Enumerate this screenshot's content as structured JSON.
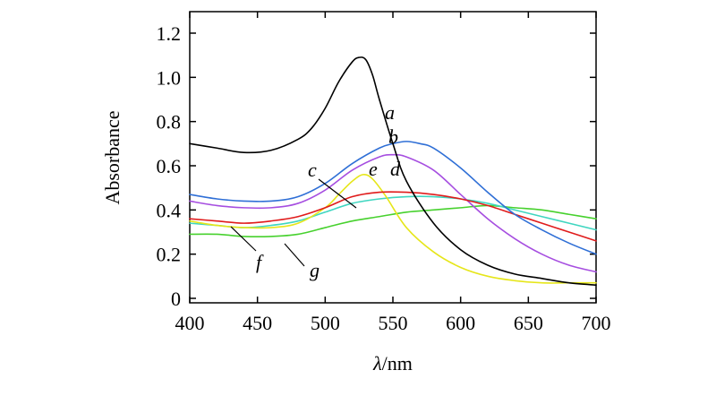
{
  "chart_data": {
    "type": "line",
    "title": "",
    "xlabel_italic": "λ",
    "xlabel_unit": "/nm",
    "ylabel": "Absorbance",
    "xlim": [
      400,
      700
    ],
    "ylim": [
      0,
      1.3
    ],
    "xticks": [
      400,
      450,
      500,
      550,
      600,
      650,
      700
    ],
    "xtick_labels": [
      "400",
      "450",
      "500",
      "550",
      "600",
      "650",
      "700"
    ],
    "yticks": [
      0,
      0.2,
      0.4,
      0.6,
      0.8,
      1.0,
      1.2
    ],
    "ytick_labels": [
      "0",
      "0.2",
      "0.4",
      "0.6",
      "0.8",
      "1.0",
      "1.2"
    ],
    "series": [
      {
        "name": "a",
        "color": "#000000",
        "x": [
          400,
          420,
          440,
          460,
          480,
          490,
          500,
          510,
          520,
          525,
          530,
          535,
          540,
          550,
          560,
          580,
          600,
          620,
          640,
          660,
          680,
          700
        ],
        "y": [
          0.7,
          0.68,
          0.66,
          0.67,
          0.72,
          0.77,
          0.86,
          0.98,
          1.07,
          1.09,
          1.08,
          1.01,
          0.9,
          0.7,
          0.53,
          0.34,
          0.22,
          0.15,
          0.11,
          0.09,
          0.07,
          0.06
        ]
      },
      {
        "name": "b",
        "color": "#2f6fd6",
        "x": [
          400,
          420,
          440,
          460,
          480,
          500,
          520,
          540,
          550,
          560,
          570,
          580,
          600,
          620,
          640,
          660,
          680,
          700
        ],
        "y": [
          0.47,
          0.45,
          0.44,
          0.44,
          0.46,
          0.52,
          0.61,
          0.68,
          0.7,
          0.71,
          0.7,
          0.68,
          0.59,
          0.48,
          0.38,
          0.31,
          0.25,
          0.2
        ]
      },
      {
        "name": "c",
        "color": "#e01b1b",
        "x": [
          400,
          420,
          440,
          460,
          480,
          500,
          520,
          540,
          560,
          580,
          600,
          620,
          640,
          660,
          680,
          700
        ],
        "y": [
          0.36,
          0.35,
          0.34,
          0.35,
          0.37,
          0.41,
          0.46,
          0.48,
          0.48,
          0.47,
          0.45,
          0.42,
          0.38,
          0.34,
          0.3,
          0.26
        ]
      },
      {
        "name": "d",
        "color": "#a64ee0",
        "x": [
          400,
          420,
          440,
          460,
          480,
          500,
          520,
          540,
          550,
          560,
          580,
          600,
          620,
          640,
          660,
          680,
          700
        ],
        "y": [
          0.44,
          0.42,
          0.41,
          0.41,
          0.43,
          0.49,
          0.58,
          0.64,
          0.65,
          0.64,
          0.58,
          0.47,
          0.36,
          0.27,
          0.2,
          0.15,
          0.12
        ]
      },
      {
        "name": "e",
        "color": "#e6e61a",
        "x": [
          400,
          420,
          440,
          460,
          480,
          500,
          510,
          520,
          528,
          535,
          545,
          560,
          580,
          600,
          620,
          640,
          660,
          680,
          700
        ],
        "y": [
          0.35,
          0.33,
          0.32,
          0.32,
          0.34,
          0.41,
          0.47,
          0.53,
          0.56,
          0.54,
          0.46,
          0.32,
          0.21,
          0.14,
          0.1,
          0.08,
          0.07,
          0.07,
          0.07
        ]
      },
      {
        "name": "f",
        "color": "#3fd6c0",
        "x": [
          400,
          420,
          440,
          460,
          480,
          500,
          520,
          540,
          560,
          580,
          600,
          620,
          640,
          660,
          680,
          700
        ],
        "y": [
          0.34,
          0.33,
          0.32,
          0.33,
          0.35,
          0.39,
          0.43,
          0.45,
          0.46,
          0.46,
          0.45,
          0.43,
          0.4,
          0.37,
          0.34,
          0.31
        ]
      },
      {
        "name": "g",
        "color": "#47d12e",
        "x": [
          400,
          420,
          440,
          460,
          480,
          500,
          520,
          540,
          560,
          580,
          600,
          620,
          640,
          660,
          680,
          700
        ],
        "y": [
          0.29,
          0.29,
          0.28,
          0.28,
          0.29,
          0.32,
          0.35,
          0.37,
          0.39,
          0.4,
          0.41,
          0.42,
          0.41,
          0.4,
          0.38,
          0.36
        ]
      }
    ],
    "curve_labels": [
      "a",
      "b",
      "c",
      "d",
      "e",
      "f",
      "g"
    ]
  }
}
